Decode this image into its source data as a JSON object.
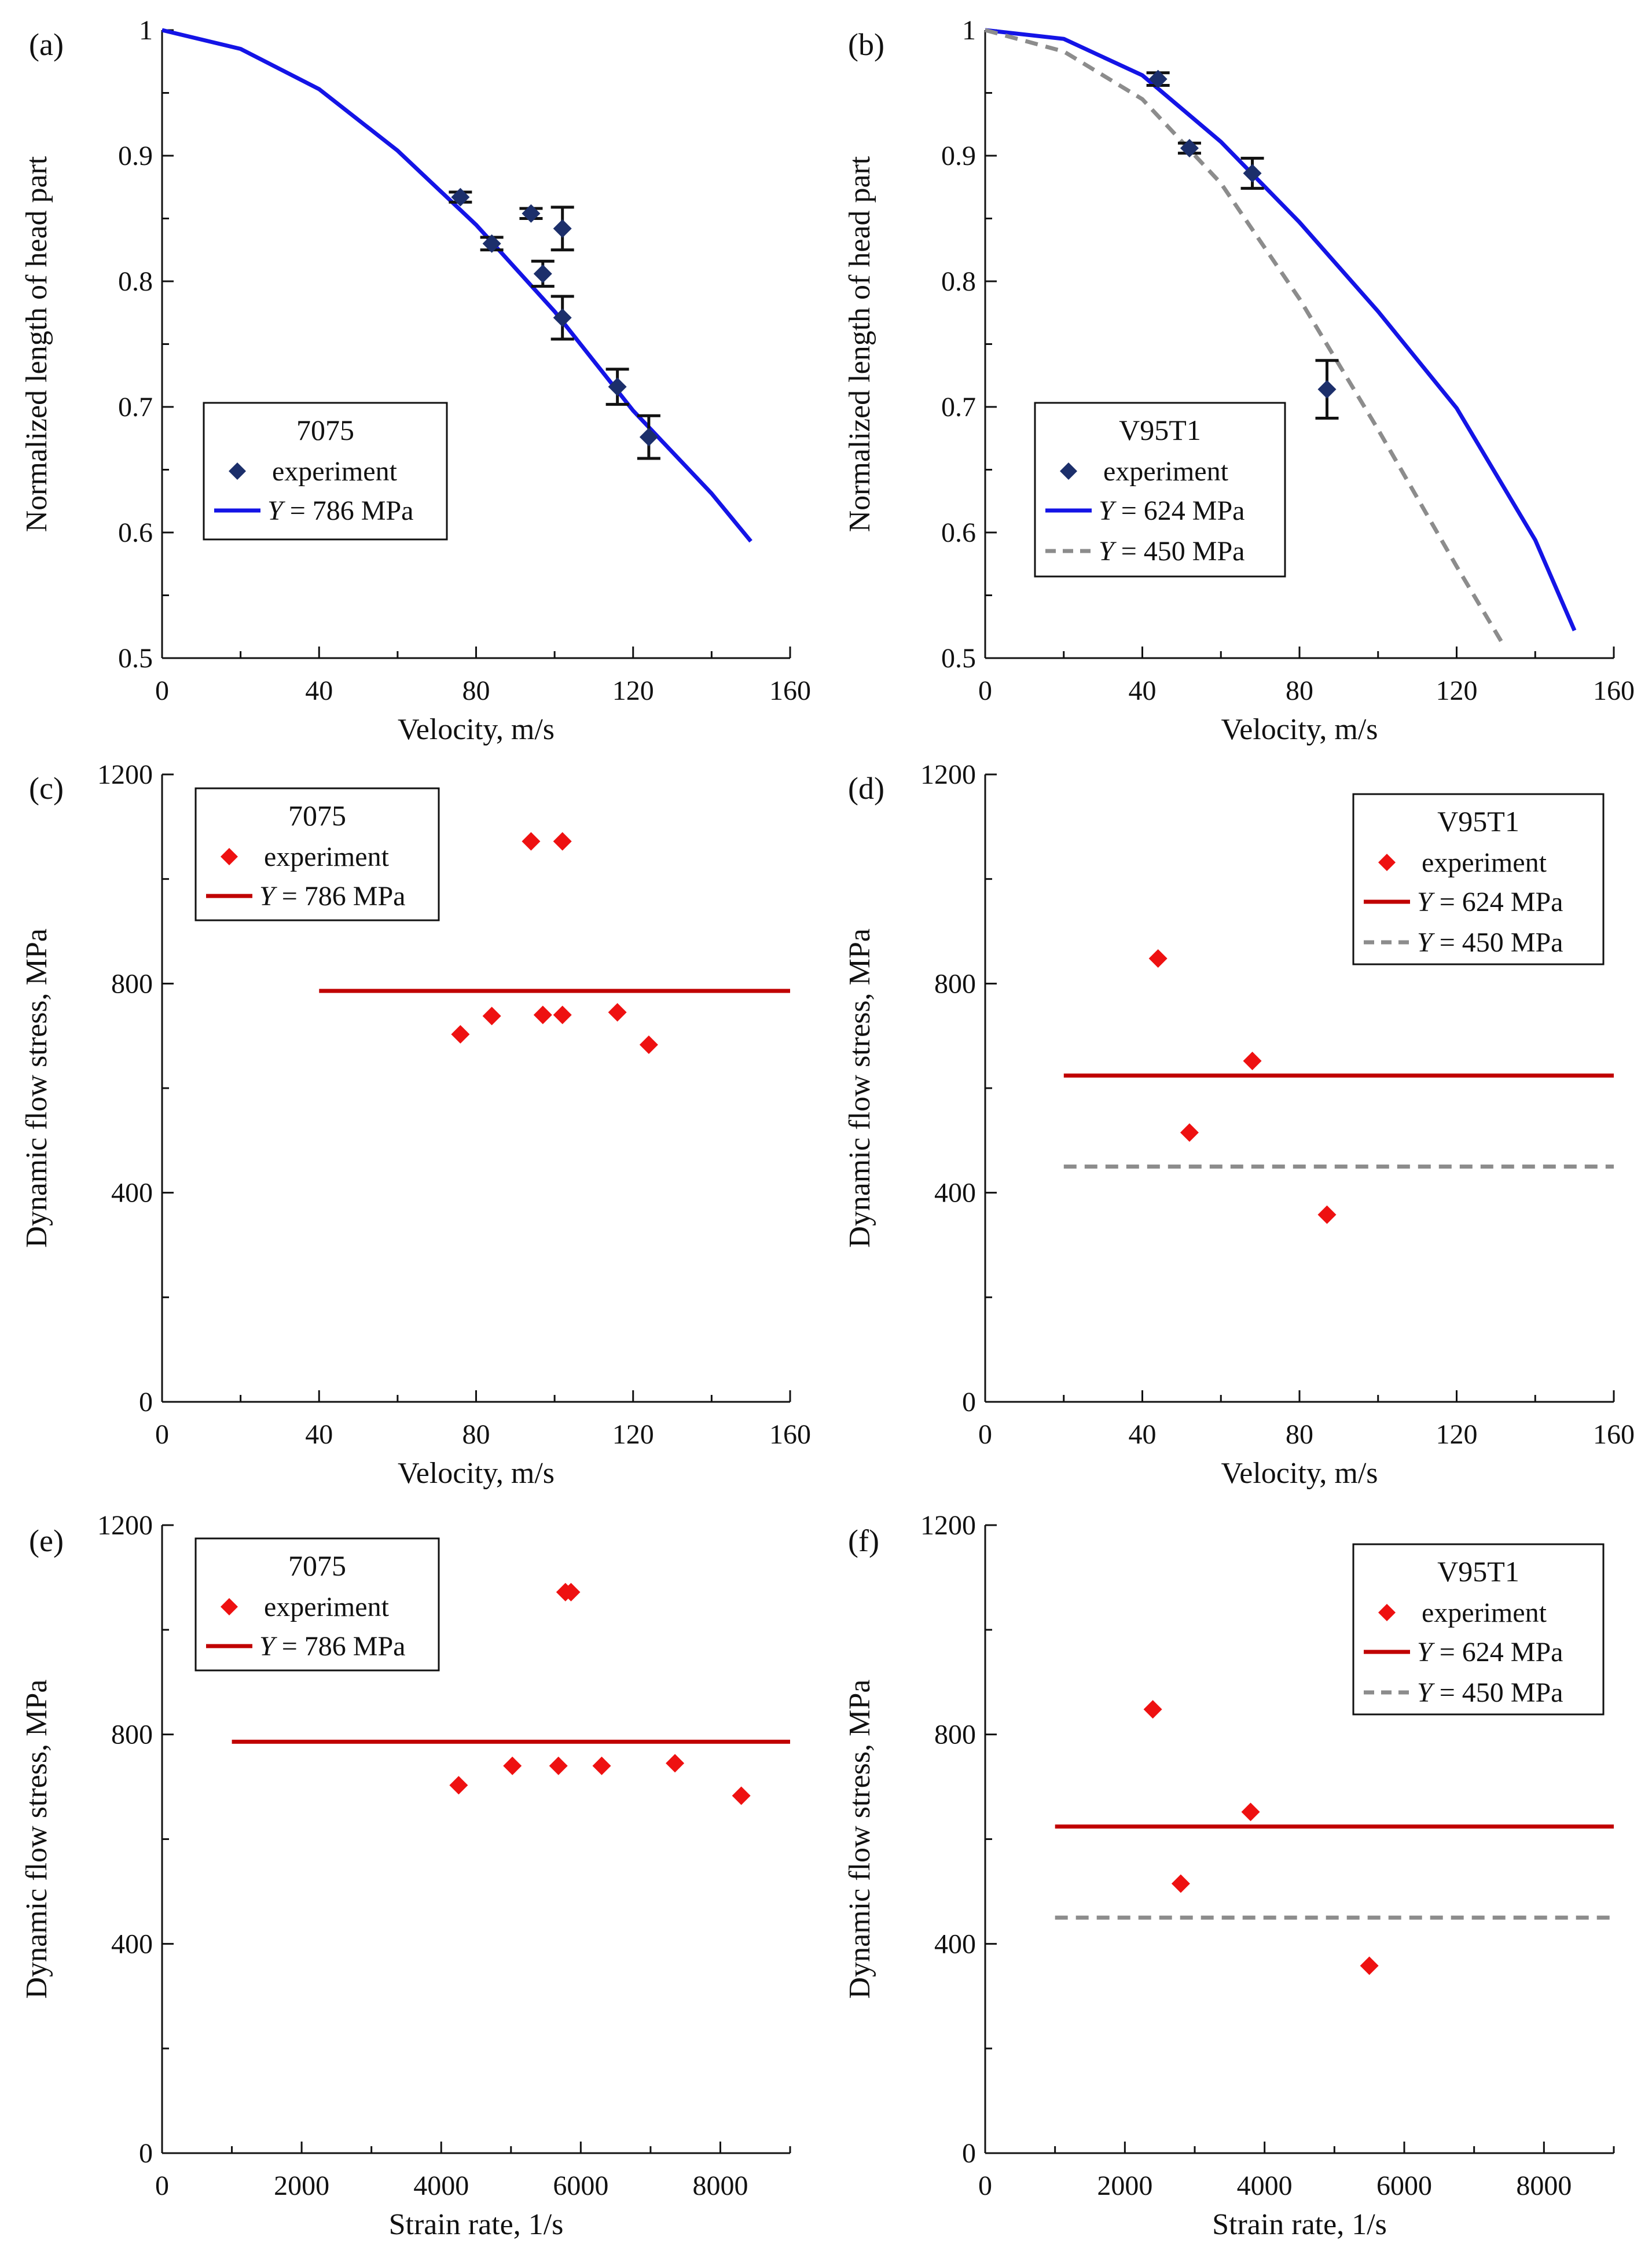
{
  "figure": {
    "accent_blue": "#1414e6",
    "accent_red": "#c00000",
    "marker_red": "#ee1111",
    "marker_navy": "#1c2f6b",
    "dash_gray": "#8c8c8c"
  },
  "chart_data": [
    {
      "id": "a",
      "panel_label": "(a)",
      "type": "line",
      "xlabel": "Velocity, m/s",
      "ylabel": "Normalized length of head part",
      "xlim": [
        0,
        160
      ],
      "ylim": [
        0.5,
        1.0
      ],
      "xticks": [
        0,
        40,
        80,
        120,
        160
      ],
      "yticks": [
        0.5,
        0.6,
        0.7,
        0.8,
        0.9,
        1.0
      ],
      "ytick_labels": [
        "0.5",
        "0.6",
        "0.7",
        "0.8",
        "0.9",
        "1"
      ],
      "legend": {
        "position": "bottom-left",
        "title": "7075",
        "experiment": "experiment",
        "line1_var": "Y",
        "line1_rest": " = 786 MPa"
      },
      "experiment": {
        "color": "navy",
        "points": [
          {
            "x": 76,
            "y": 0.867,
            "err": 0.004
          },
          {
            "x": 84,
            "y": 0.83,
            "err": 0.005
          },
          {
            "x": 94,
            "y": 0.854,
            "err": 0.004
          },
          {
            "x": 97,
            "y": 0.806,
            "err": 0.01
          },
          {
            "x": 102,
            "y": 0.842,
            "err": 0.017
          },
          {
            "x": 102,
            "y": 0.771,
            "err": 0.017
          },
          {
            "x": 116,
            "y": 0.716,
            "err": 0.014
          },
          {
            "x": 124,
            "y": 0.676,
            "err": 0.017
          }
        ]
      },
      "lines": [
        {
          "name": "Y = 786 MPa",
          "style": "solid-blue",
          "x": [
            0,
            20,
            40,
            60,
            80,
            100,
            120,
            140,
            150
          ],
          "y": [
            1.0,
            0.985,
            0.953,
            0.904,
            0.845,
            0.776,
            0.697,
            0.631,
            0.593
          ]
        }
      ]
    },
    {
      "id": "b",
      "panel_label": "(b)",
      "type": "line",
      "xlabel": "Velocity, m/s",
      "ylabel": "Normalized length of head part",
      "xlim": [
        0,
        160
      ],
      "ylim": [
        0.5,
        1.0
      ],
      "xticks": [
        0,
        40,
        80,
        120,
        160
      ],
      "yticks": [
        0.5,
        0.6,
        0.7,
        0.8,
        0.9,
        1.0
      ],
      "ytick_labels": [
        "0.5",
        "0.6",
        "0.7",
        "0.8",
        "0.9",
        "1"
      ],
      "legend": {
        "position": "bottom-left",
        "title": "V95T1",
        "experiment": "experiment",
        "line1_var": "Y",
        "line1_rest": " = 624 MPa",
        "line2_var": "Y",
        "line2_rest": " = 450 MPa"
      },
      "experiment": {
        "color": "navy",
        "points": [
          {
            "x": 44,
            "y": 0.961,
            "err": 0.005
          },
          {
            "x": 52,
            "y": 0.906,
            "err": 0.004
          },
          {
            "x": 68,
            "y": 0.886,
            "err": 0.012
          },
          {
            "x": 87,
            "y": 0.714,
            "err": 0.023
          }
        ]
      },
      "lines": [
        {
          "name": "Y = 624 MPa",
          "style": "solid-blue",
          "x": [
            0,
            20,
            40,
            60,
            80,
            100,
            120,
            140,
            150
          ],
          "y": [
            1.0,
            0.993,
            0.964,
            0.911,
            0.847,
            0.776,
            0.699,
            0.594,
            0.522
          ]
        },
        {
          "name": "Y = 450 MPa",
          "style": "dashed-gray",
          "x": [
            0,
            20,
            40,
            60,
            80,
            100,
            120,
            132
          ],
          "y": [
            1.0,
            0.983,
            0.945,
            0.878,
            0.786,
            0.682,
            0.573,
            0.51
          ]
        }
      ]
    },
    {
      "id": "c",
      "panel_label": "(c)",
      "type": "scatter",
      "xlabel": "Velocity, m/s",
      "ylabel": "Dynamic flow stress, MPa",
      "xlim": [
        0,
        160
      ],
      "ylim": [
        0,
        1200
      ],
      "xticks": [
        0,
        40,
        80,
        120,
        160
      ],
      "yticks": [
        0,
        400,
        800,
        1200
      ],
      "ytick_labels": [
        "0",
        "400",
        "800",
        "1200"
      ],
      "legend": {
        "position": "top-left",
        "title": "7075",
        "experiment": "experiment",
        "line1_var": "Y",
        "line1_rest": " = 786 MPa"
      },
      "experiment": {
        "color": "red",
        "points": [
          {
            "x": 76,
            "y": 703
          },
          {
            "x": 84,
            "y": 738
          },
          {
            "x": 94,
            "y": 1072
          },
          {
            "x": 97,
            "y": 740
          },
          {
            "x": 102,
            "y": 1072
          },
          {
            "x": 102,
            "y": 740
          },
          {
            "x": 116,
            "y": 745
          },
          {
            "x": 124,
            "y": 683
          }
        ]
      },
      "lines": [
        {
          "name": "Y = 786 MPa",
          "style": "solid-red",
          "x": [
            40,
            160
          ],
          "y": [
            786,
            786
          ]
        }
      ]
    },
    {
      "id": "d",
      "panel_label": "(d)",
      "type": "scatter",
      "xlabel": "Velocity, m/s",
      "ylabel": "Dynamic flow stress, MPa",
      "xlim": [
        0,
        160
      ],
      "ylim": [
        0,
        1200
      ],
      "xticks": [
        0,
        40,
        80,
        120,
        160
      ],
      "yticks": [
        0,
        400,
        800,
        1200
      ],
      "ytick_labels": [
        "0",
        "400",
        "800",
        "1200"
      ],
      "legend": {
        "position": "top-right",
        "title": "V95T1",
        "experiment": "experiment",
        "line1_var": "Y",
        "line1_rest": " = 624 MPa",
        "line2_var": "Y",
        "line2_rest": " = 450 MPa"
      },
      "experiment": {
        "color": "red",
        "points": [
          {
            "x": 44,
            "y": 848
          },
          {
            "x": 52,
            "y": 515
          },
          {
            "x": 68,
            "y": 652
          },
          {
            "x": 87,
            "y": 358
          }
        ]
      },
      "lines": [
        {
          "name": "Y = 624 MPa",
          "style": "solid-red",
          "x": [
            20,
            160
          ],
          "y": [
            624,
            624
          ]
        },
        {
          "name": "Y = 450 MPa",
          "style": "dashed-gray",
          "x": [
            20,
            160
          ],
          "y": [
            450,
            450
          ]
        }
      ]
    },
    {
      "id": "e",
      "panel_label": "(e)",
      "type": "scatter",
      "xlabel": "Strain rate, 1/s",
      "ylabel": "Dynamic flow stress, MPa",
      "xlim": [
        0,
        9000
      ],
      "ylim": [
        0,
        1200
      ],
      "xticks": [
        0,
        2000,
        4000,
        6000,
        8000
      ],
      "yticks": [
        0,
        400,
        800,
        1200
      ],
      "ytick_labels": [
        "0",
        "400",
        "800",
        "1200"
      ],
      "legend": {
        "position": "top-left",
        "title": "7075",
        "experiment": "experiment",
        "line1_var": "Y",
        "line1_rest": " = 786 MPa"
      },
      "experiment": {
        "color": "red",
        "points": [
          {
            "x": 4250,
            "y": 703
          },
          {
            "x": 5020,
            "y": 740
          },
          {
            "x": 5680,
            "y": 740
          },
          {
            "x": 5780,
            "y": 1072
          },
          {
            "x": 5860,
            "y": 1072
          },
          {
            "x": 6300,
            "y": 740
          },
          {
            "x": 7350,
            "y": 745
          },
          {
            "x": 8300,
            "y": 683
          }
        ]
      },
      "lines": [
        {
          "name": "Y = 786 MPa",
          "style": "solid-red",
          "x": [
            1000,
            9000
          ],
          "y": [
            786,
            786
          ]
        }
      ]
    },
    {
      "id": "f",
      "panel_label": "(f)",
      "type": "scatter",
      "xlabel": "Strain rate, 1/s",
      "ylabel": "Dynamic flow stress, MPa",
      "xlim": [
        0,
        9000
      ],
      "ylim": [
        0,
        1200
      ],
      "xticks": [
        0,
        2000,
        4000,
        6000,
        8000
      ],
      "yticks": [
        0,
        400,
        800,
        1200
      ],
      "ytick_labels": [
        "0",
        "400",
        "800",
        "1200"
      ],
      "legend": {
        "position": "top-right",
        "title": "V95T1",
        "experiment": "experiment",
        "line1_var": "Y",
        "line1_rest": " = 624 MPa",
        "line2_var": "Y",
        "line2_rest": " = 450 MPa"
      },
      "experiment": {
        "color": "red",
        "points": [
          {
            "x": 2400,
            "y": 848
          },
          {
            "x": 2800,
            "y": 515
          },
          {
            "x": 3800,
            "y": 652
          },
          {
            "x": 5500,
            "y": 358
          }
        ]
      },
      "lines": [
        {
          "name": "Y = 624 MPa",
          "style": "solid-red",
          "x": [
            1000,
            9000
          ],
          "y": [
            624,
            624
          ]
        },
        {
          "name": "Y = 450 MPa",
          "style": "dashed-gray",
          "x": [
            1000,
            9000
          ],
          "y": [
            450,
            450
          ]
        }
      ]
    }
  ]
}
